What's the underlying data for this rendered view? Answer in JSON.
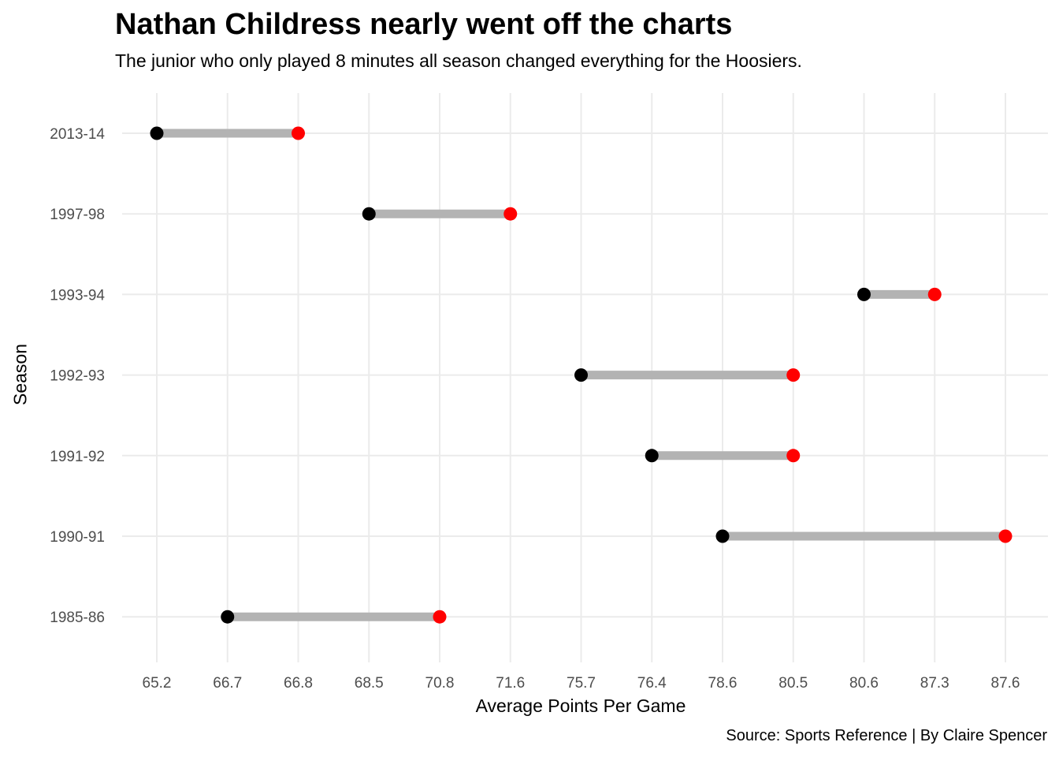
{
  "chart_data": {
    "type": "dumbbell",
    "title": "Nathan Childress nearly went off the charts",
    "subtitle": "The junior who only played 8 minutes all season changed everything for the Hoosiers.",
    "caption": "Source: Sports Reference | By Claire Spencer",
    "xlabel": "Average Points Per Game",
    "ylabel": "Season",
    "x_ticks": [
      "65.2",
      "66.7",
      "66.8",
      "68.5",
      "70.8",
      "71.6",
      "75.7",
      "76.4",
      "78.6",
      "80.5",
      "80.6",
      "87.3",
      "87.6"
    ],
    "y_categories": [
      "2013-14",
      "1997-98",
      "1993-94",
      "1992-93",
      "1991-92",
      "1990-91",
      "1985-86"
    ],
    "rows": [
      {
        "season": "2013-14",
        "low": "65.2",
        "high": "66.8"
      },
      {
        "season": "1997-98",
        "low": "68.5",
        "high": "71.6"
      },
      {
        "season": "1993-94",
        "low": "80.6",
        "high": "87.3"
      },
      {
        "season": "1992-93",
        "low": "75.7",
        "high": "80.5"
      },
      {
        "season": "1991-92",
        "low": "76.4",
        "high": "80.5"
      },
      {
        "season": "1990-91",
        "low": "78.6",
        "high": "87.6"
      },
      {
        "season": "1985-86",
        "low": "66.7",
        "high": "70.8"
      }
    ],
    "grid": true,
    "colors": {
      "low_point": "#000000",
      "high_point": "#ff0000",
      "segment": "#b3b3b3",
      "grid": "#ebebeb"
    }
  }
}
